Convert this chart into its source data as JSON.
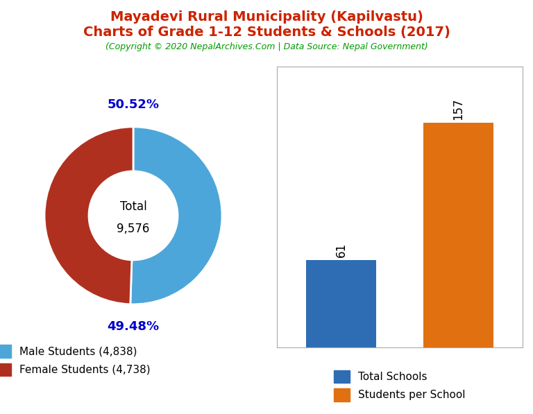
{
  "title_line1": "Mayadevi Rural Municipality (Kapilvastu)",
  "title_line2": "Charts of Grade 1-12 Students & Schools (2017)",
  "subtitle": "(Copyright © 2020 NepalArchives.Com | Data Source: Nepal Government)",
  "title_color": "#cc2200",
  "subtitle_color": "#009900",
  "male_students": 4838,
  "female_students": 4738,
  "total_students": 9576,
  "male_pct": "50.52%",
  "female_pct": "49.48%",
  "male_color": "#4da6d9",
  "female_color": "#b03020",
  "donut_label_color": "#0000cc",
  "total_schools": 61,
  "students_per_school": 157,
  "bar_color_schools": "#2e6db4",
  "bar_color_students": "#e07010",
  "bar_label_color": "#000000",
  "legend_male_label": "Male Students (4,838)",
  "legend_female_label": "Female Students (4,738)",
  "legend_schools_label": "Total Schools",
  "legend_students_label": "Students per School",
  "background_color": "#ffffff"
}
